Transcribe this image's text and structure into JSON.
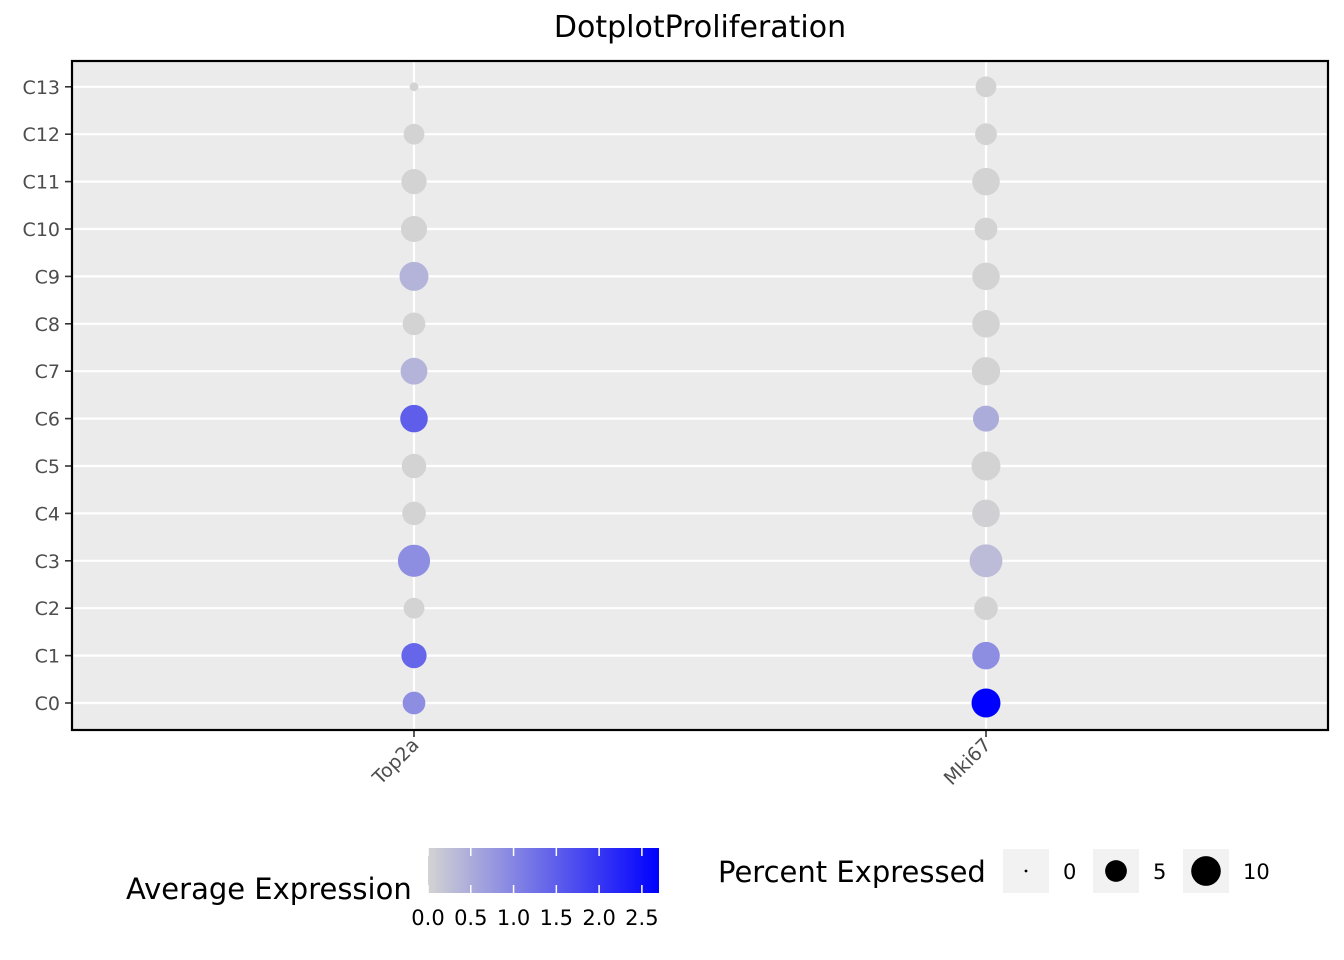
{
  "chart_data": {
    "type": "dotplot",
    "title": "DotplotProliferation",
    "xlabel": "",
    "ylabel": "",
    "genes": [
      "Top2a",
      "Mki67"
    ],
    "clusters": [
      "C0",
      "C1",
      "C2",
      "C3",
      "C4",
      "C5",
      "C6",
      "C7",
      "C8",
      "C9",
      "C10",
      "C11",
      "C12",
      "C13"
    ],
    "avg_expression": {
      "Top2a": [
        0.9,
        1.4,
        0.0,
        0.9,
        0.0,
        0.0,
        1.5,
        0.4,
        0.0,
        0.4,
        0.0,
        0.0,
        0.0,
        0.0
      ],
      "Mki67": [
        2.7,
        0.9,
        0.0,
        0.3,
        0.05,
        0.0,
        0.5,
        0.0,
        0.0,
        0.0,
        0.0,
        0.0,
        0.0,
        0.0
      ]
    },
    "pct_expressed": {
      "Top2a": [
        5.5,
        7.0,
        4.5,
        12.0,
        6.0,
        6.5,
        8.5,
        8.0,
        5.5,
        9.5,
        7.5,
        7.0,
        4.5,
        0.5
      ],
      "Mki67": [
        9.5,
        8.5,
        6.0,
        12.5,
        8.5,
        9.5,
        7.5,
        9.0,
        8.5,
        8.5,
        5.5,
        8.5,
        5.0,
        4.5
      ]
    },
    "color_scale": {
      "low": "#d3d3d3",
      "high": "#0000ff",
      "min": 0,
      "max": 2.7
    },
    "grid": true,
    "legend_position": "bottom",
    "legends": {
      "color": {
        "title": "Average Expression",
        "ticks": [
          0.0,
          0.5,
          1.0,
          1.5,
          2.0,
          2.5
        ],
        "tick_labels": [
          "0.0",
          "0.5",
          "1.0",
          "1.5",
          "2.0",
          "2.5"
        ]
      },
      "size": {
        "title": "Percent Expressed",
        "values": [
          0,
          5,
          10
        ],
        "labels": [
          "0",
          "5",
          "10"
        ]
      }
    }
  },
  "colors": {
    "panel_background": "#ebebeb",
    "grid": "#ffffff",
    "border": "#000000",
    "legend_key_background": "#f2f2f2"
  }
}
